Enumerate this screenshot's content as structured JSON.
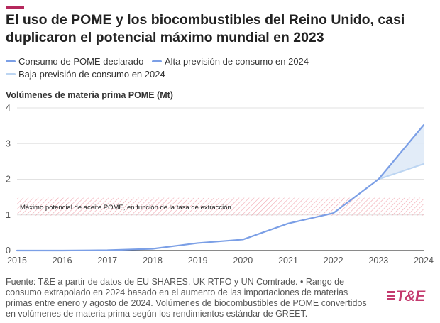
{
  "title": "El uso de POME y los biocombustibles del Reino Unido, casi duplicaron el potencial máximo mundial en 2023",
  "legend": [
    {
      "label": "Consumo de POME declarado",
      "color": "#7b9fe6"
    },
    {
      "label": "Alta previsión de consumo en 2024",
      "color": "#7b9fe6"
    },
    {
      "label": "Baja previsión de consumo en 2024",
      "color": "#bcd5f2"
    }
  ],
  "chart_subtitle": "Volúmenes de materia prima POME (Mt)",
  "band_label": "Máximo potencial de aceite POME, en función de la tasa de extracción",
  "footer": "Fuente: T&E a partir de datos de EU SHARES, UK RTFO y UN Comtrade. • Rango de consumo extrapolado en 2024 basado en el aumento de las importaciones de materias primas entre enero y agosto de 2024. Volúmenes de biocombustibles de POME convertidos en volúmenes de materia prima según los rendimientos estándar de GREET.",
  "logo": "T&E",
  "chart_data": {
    "type": "line",
    "title": "Volúmenes de materia prima POME (Mt)",
    "xlabel": "",
    "ylabel": "",
    "x": [
      "2015",
      "2016",
      "2017",
      "2018",
      "2019",
      "2020",
      "2021",
      "2022",
      "2023",
      "2024"
    ],
    "xlim": [
      2015,
      2024
    ],
    "ylim": [
      0,
      4
    ],
    "yticks": [
      0,
      1,
      2,
      3,
      4
    ],
    "grid": true,
    "series": [
      {
        "name": "Consumo de POME declarado",
        "color": "#7b9fe6",
        "points": [
          [
            2015,
            0.0
          ],
          [
            2016,
            0.0
          ],
          [
            2017,
            0.01
          ],
          [
            2018,
            0.05
          ],
          [
            2019,
            0.21
          ],
          [
            2020,
            0.31
          ],
          [
            2021,
            0.76
          ],
          [
            2022,
            1.05
          ],
          [
            2023,
            2.0
          ]
        ]
      },
      {
        "name": "Alta previsión de consumo en 2024",
        "color": "#7b9fe6",
        "points": [
          [
            2023,
            2.0
          ],
          [
            2024,
            3.52
          ]
        ]
      },
      {
        "name": "Baja previsión de consumo en 2024",
        "color": "#bcd5f2",
        "points": [
          [
            2023,
            2.0
          ],
          [
            2024,
            2.43
          ]
        ]
      }
    ],
    "band": {
      "label": "Máximo potencial de aceite POME, en función de la tasa de extracción",
      "from": 0.98,
      "to": 1.48
    }
  }
}
